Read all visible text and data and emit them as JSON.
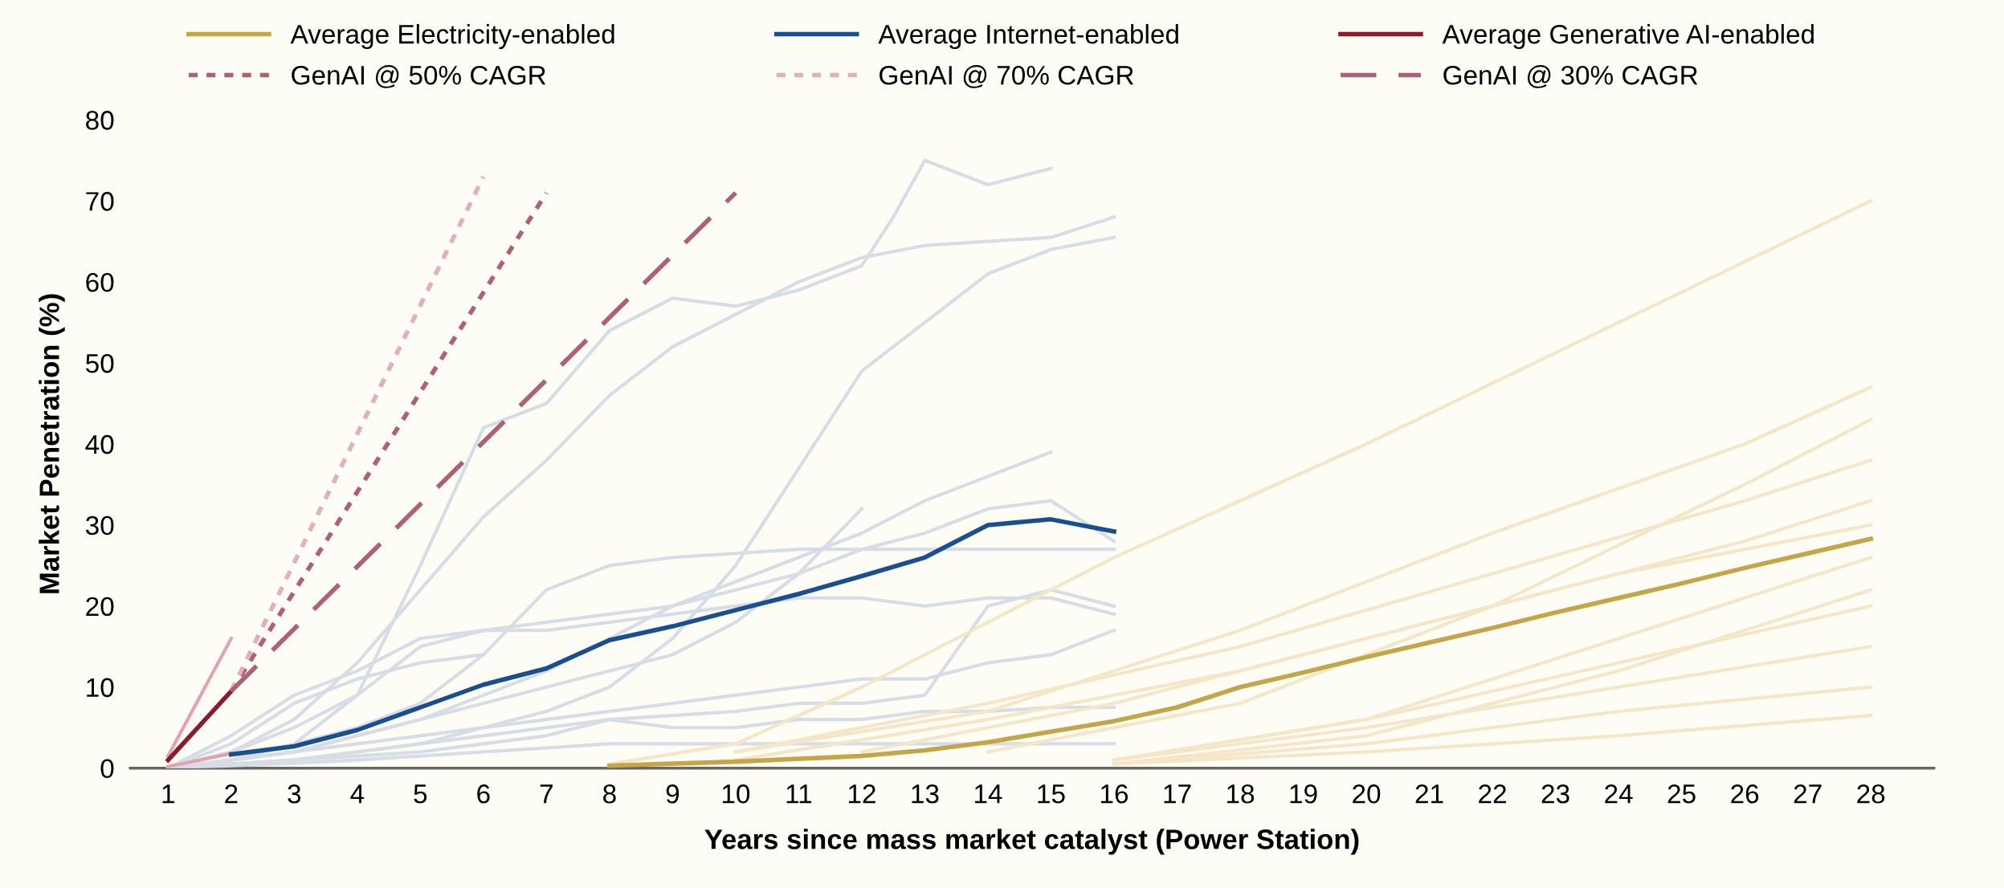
{
  "chart_data": {
    "type": "line",
    "xlabel": "Years since mass market catalyst (Power Station)",
    "ylabel": "Market Penetration (%)",
    "xlim": [
      0.4,
      29
    ],
    "ylim": [
      0,
      80
    ],
    "xticks": [
      1,
      2,
      3,
      4,
      5,
      6,
      7,
      8,
      9,
      10,
      11,
      12,
      13,
      14,
      15,
      16,
      17,
      18,
      19,
      20,
      21,
      22,
      23,
      24,
      25,
      26,
      27,
      28
    ],
    "yticks": [
      0,
      10,
      20,
      30,
      40,
      50,
      60,
      70,
      80
    ],
    "grid": false,
    "legend": "top",
    "marker": "none",
    "series": [
      {
        "color": "#d6dde6",
        "x": [
          1,
          2,
          3,
          4,
          5,
          6,
          7,
          8,
          9,
          10,
          11,
          12,
          12.5,
          13,
          14,
          15
        ],
        "values": [
          0,
          1,
          3,
          9,
          25,
          42,
          45,
          54,
          58,
          57,
          59,
          62,
          68,
          75,
          72,
          74
        ]
      },
      {
        "color": "#d6dde6",
        "x": [
          1,
          2,
          3,
          4,
          5,
          6,
          7,
          8,
          9,
          10,
          11,
          12,
          13,
          14,
          15,
          16
        ],
        "values": [
          0,
          2,
          6,
          13,
          22,
          31,
          38,
          46,
          52,
          56,
          60,
          63,
          64.5,
          65,
          65.5,
          68
        ]
      },
      {
        "color": "#d6dde6",
        "x": [
          1,
          2,
          3,
          4,
          5,
          6,
          7,
          8,
          9,
          10,
          11,
          12,
          13,
          14,
          15,
          16
        ],
        "values": [
          0,
          0.5,
          1,
          2,
          3,
          5,
          7,
          10,
          16,
          25,
          37,
          49,
          55,
          61,
          64,
          65.5
        ]
      },
      {
        "color": "#d6dde6",
        "x": [
          1,
          2,
          3,
          4,
          5,
          6,
          7,
          8,
          9,
          10,
          11,
          12,
          13,
          14,
          15
        ],
        "values": [
          0,
          1,
          2,
          4,
          6,
          9,
          12,
          16,
          20,
          23,
          26,
          29,
          33,
          36,
          39
        ]
      },
      {
        "color": "#d6dde6",
        "x": [
          1,
          2,
          3,
          4,
          5,
          6,
          7,
          8,
          9,
          10,
          11,
          12,
          13,
          14,
          15,
          16
        ],
        "values": [
          0,
          2,
          5,
          9,
          15,
          17,
          18,
          19,
          20,
          22,
          24,
          27,
          29,
          32,
          33,
          28
        ]
      },
      {
        "color": "#d6dde6",
        "x": [
          1,
          2,
          3,
          4,
          5,
          6,
          7,
          8,
          9,
          10,
          11,
          12,
          13,
          14,
          15,
          16
        ],
        "values": [
          0,
          1,
          3,
          5,
          8,
          14,
          22,
          25,
          26,
          26.5,
          27,
          27,
          27,
          27,
          27,
          27
        ]
      },
      {
        "color": "#d6dde6",
        "x": [
          1,
          2,
          3,
          4,
          5,
          6
        ],
        "values": [
          0,
          3,
          8,
          11,
          13,
          14
        ]
      },
      {
        "color": "#d6dde6",
        "x": [
          1,
          2,
          3,
          4,
          5,
          6,
          7,
          8,
          9,
          10,
          11,
          12,
          13,
          14,
          15,
          16
        ],
        "values": [
          0,
          4,
          9,
          12,
          16,
          17,
          17,
          18,
          19,
          20,
          21,
          21,
          20,
          21,
          21,
          19
        ]
      },
      {
        "color": "#d6dde6",
        "x": [
          1,
          2,
          3,
          4,
          5,
          6,
          7,
          8,
          9,
          10,
          11,
          12,
          13,
          14,
          15,
          16
        ],
        "values": [
          0,
          1,
          2,
          3,
          4,
          5,
          6,
          7,
          8,
          9,
          10,
          11,
          11,
          13,
          14,
          17
        ]
      },
      {
        "color": "#d6dde6",
        "x": [
          1,
          2,
          3,
          4,
          5,
          6,
          7,
          8,
          9,
          10,
          11,
          12,
          13,
          14,
          15,
          16
        ],
        "values": [
          0,
          0.5,
          1,
          1.5,
          2,
          3,
          4,
          6,
          5,
          5,
          6,
          6,
          7,
          7,
          7.5,
          7.5
        ]
      },
      {
        "color": "#d6dde6",
        "x": [
          1,
          2,
          3,
          4,
          5,
          6,
          7,
          8,
          9,
          10,
          11,
          12,
          13,
          14,
          15,
          16
        ],
        "values": [
          0,
          0.3,
          0.6,
          1,
          1.5,
          2,
          2.5,
          3,
          3,
          3,
          3,
          3,
          3,
          3,
          3,
          3
        ]
      },
      {
        "color": "#d6dde6",
        "x": [
          1,
          2,
          3,
          4,
          5,
          6,
          7,
          8,
          9,
          10,
          11,
          12,
          13,
          14,
          15,
          16
        ],
        "values": [
          0,
          0.5,
          1,
          2,
          3,
          4,
          5,
          6,
          6.5,
          7,
          8,
          8,
          9,
          20,
          22,
          20
        ]
      },
      {
        "color": "#d6dde6",
        "x": [
          1,
          2,
          3,
          4,
          5,
          6,
          7,
          8,
          9,
          10,
          11,
          12
        ],
        "values": [
          0,
          1,
          2,
          4,
          6,
          8,
          10,
          12,
          14,
          18,
          24,
          32
        ]
      },
      {
        "color": "#f5e6c8",
        "x": [
          8,
          10,
          12,
          14,
          16,
          20,
          24,
          28
        ],
        "values": [
          0.5,
          3,
          10,
          18,
          26,
          40,
          55,
          70
        ]
      },
      {
        "color": "#f5e6c8",
        "x": [
          10,
          14,
          18,
          22,
          26,
          28
        ],
        "values": [
          2,
          7,
          17,
          29,
          40,
          47
        ]
      },
      {
        "color": "#f5e6c8",
        "x": [
          14,
          18,
          22,
          26,
          28
        ],
        "values": [
          2,
          8,
          20,
          35,
          43
        ]
      },
      {
        "color": "#f5e6c8",
        "x": [
          10,
          14,
          18,
          22,
          26,
          28
        ],
        "values": [
          2,
          8,
          15,
          24,
          33,
          38
        ]
      },
      {
        "color": "#f5e6c8",
        "x": [
          10,
          14,
          18,
          22,
          26,
          28
        ],
        "values": [
          1,
          6,
          12,
          20,
          28,
          33
        ]
      },
      {
        "color": "#f5e6c8",
        "x": [
          12,
          16,
          20,
          24,
          28
        ],
        "values": [
          2,
          8,
          16,
          24,
          30
        ]
      },
      {
        "color": "#f5e6c8",
        "x": [
          16,
          20,
          24,
          28
        ],
        "values": [
          1,
          6,
          16,
          26
        ]
      },
      {
        "color": "#f5e6c8",
        "x": [
          16,
          20,
          24,
          28
        ],
        "values": [
          0.5,
          4,
          12,
          22
        ]
      },
      {
        "color": "#f5e6c8",
        "x": [
          16,
          20,
          24,
          28
        ],
        "values": [
          1,
          6,
          13,
          20
        ]
      },
      {
        "color": "#f5e6c8",
        "x": [
          16,
          20,
          24,
          28
        ],
        "values": [
          1,
          5,
          10,
          15
        ]
      },
      {
        "color": "#f5e6c8",
        "x": [
          16,
          20,
          24,
          28
        ],
        "values": [
          0.5,
          3,
          7,
          10
        ]
      },
      {
        "color": "#f5e6c8",
        "x": [
          16,
          20,
          24,
          28
        ],
        "values": [
          0.5,
          2,
          4,
          6.5
        ]
      },
      {
        "color": "#e3a3ad",
        "x": [
          1,
          2
        ],
        "values": [
          1.5,
          16
        ]
      },
      {
        "color": "#e3a3ad",
        "x": [
          1,
          2
        ],
        "values": [
          0.2,
          1.8
        ]
      },
      {
        "name": "Average Electricity-enabled",
        "color": "#c4a548",
        "x": [
          8,
          10,
          12,
          13,
          14,
          15,
          16,
          17,
          18,
          19,
          20,
          21,
          22,
          23,
          24,
          25,
          26,
          27,
          28
        ],
        "values": [
          0.3,
          0.8,
          1.5,
          2.2,
          3.2,
          4.5,
          5.8,
          7.5,
          10,
          11.8,
          13.7,
          15.5,
          17.3,
          19.2,
          21,
          22.8,
          24.7,
          26.5,
          28.3
        ]
      },
      {
        "name": "Average Internet-enabled",
        "color": "#1a4f8f",
        "x": [
          2,
          3,
          4,
          5,
          6,
          7,
          8,
          9,
          10,
          11,
          12,
          13,
          14,
          15,
          16
        ],
        "values": [
          1.7,
          2.7,
          4.7,
          7.5,
          10.3,
          12.3,
          15.8,
          17.5,
          19.5,
          21.5,
          23.7,
          26,
          30,
          30.7,
          29.2
        ]
      },
      {
        "name": "Average Generative AI-enabled",
        "color": "#8b1a2b",
        "x": [
          1,
          2
        ],
        "values": [
          1,
          9.5
        ]
      },
      {
        "name": "GenAI @ 50% CAGR",
        "color": "#b06070",
        "line_style": "dotted",
        "x": [
          2,
          7
        ],
        "values": [
          9.5,
          71
        ]
      },
      {
        "name": "GenAI @ 70% CAGR",
        "color": "#e3b0b8",
        "line_style": "dotted",
        "x": [
          2,
          6
        ],
        "values": [
          9.5,
          73
        ]
      },
      {
        "name": "GenAI @ 30% CAGR",
        "color": "#b06070",
        "line_style": "dashed",
        "x": [
          2,
          10
        ],
        "values": [
          9.5,
          71
        ]
      }
    ]
  }
}
